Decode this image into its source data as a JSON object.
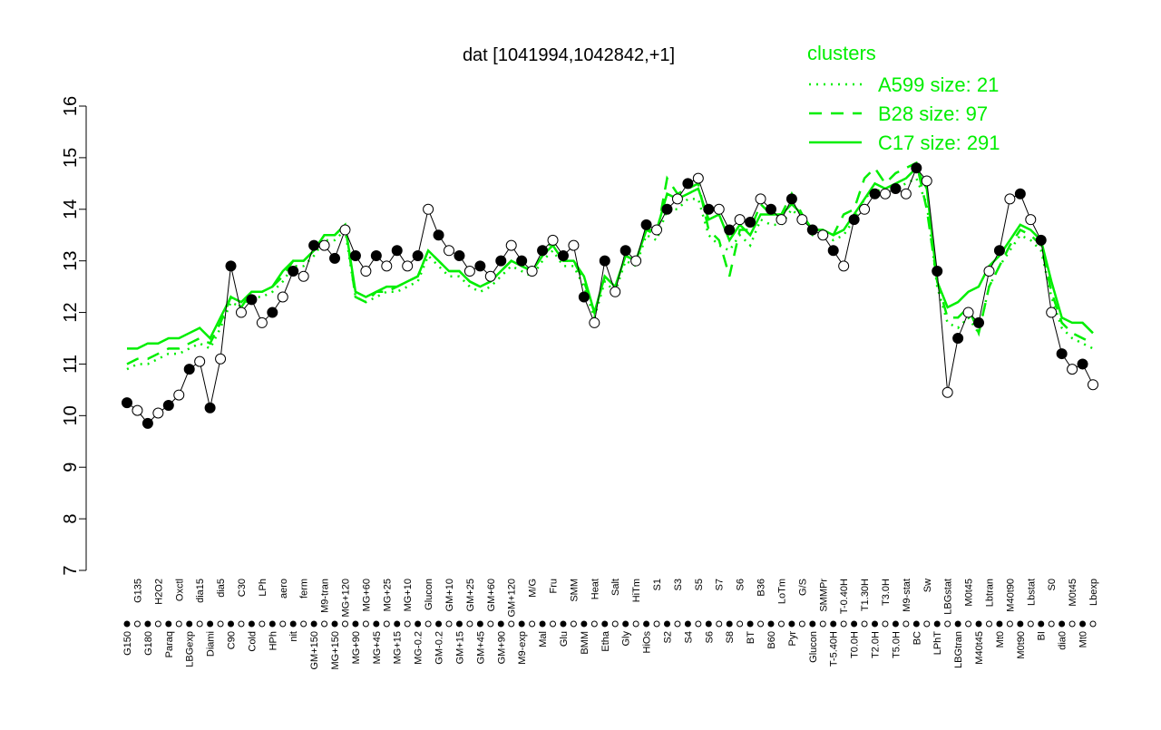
{
  "chart_data": {
    "type": "line",
    "title": "dat [1041994,1042842,+1]",
    "categories": [
      "G150",
      "G135",
      "G180",
      "H2O2",
      "Paraq",
      "Oxctl",
      "LBGexp",
      "dia15",
      "Diami",
      "dia5",
      "C90",
      "C30",
      "Cold",
      "LPh",
      "HPh",
      "aero",
      "nit",
      "ferm",
      "GM+150",
      "M9-tran",
      "MG+150",
      "MG+120",
      "MG+90",
      "MG+60",
      "MG+45",
      "MG+25",
      "MG+15",
      "MG+10",
      "MG-0.2",
      "Glucon",
      "GM-0.2",
      "GM+10",
      "GM+15",
      "GM+25",
      "GM+45",
      "GM+60",
      "GM+90",
      "GM+120",
      "M9-exp",
      "M/G",
      "Mal",
      "Fru",
      "Glu",
      "SMM",
      "BMM",
      "Heat",
      "Etha",
      "Salt",
      "Gly",
      "HiTm",
      "HiOs",
      "S1",
      "S2",
      "S3",
      "S4",
      "S5",
      "S6",
      "S7",
      "S8",
      "S6",
      "BT",
      "B36",
      "B60",
      "LoTm",
      "Pyr",
      "G/S",
      "Glucon",
      "SMMPr",
      "T-5.40H",
      "T-0.40H",
      "T0.0H",
      "T1.30H",
      "T2.0H",
      "T3.0H",
      "T5.0H",
      "M9-stat",
      "BC",
      "Sw",
      "LPhT",
      "LBGstat",
      "LBGtran",
      "M0t45",
      "M40t45",
      "Lbtran",
      "Mt0",
      "M40t90",
      "M0t90",
      "Lbstat",
      "BI",
      "S0",
      "dia0",
      "M0t45",
      "Mt0",
      "Lbexp"
    ],
    "values": [
      10.25,
      10.1,
      9.85,
      10.05,
      10.2,
      10.4,
      10.9,
      11.05,
      10.15,
      11.1,
      12.9,
      12.0,
      12.25,
      11.8,
      12.0,
      12.3,
      12.8,
      12.7,
      13.3,
      13.3,
      13.05,
      13.6,
      13.1,
      12.8,
      13.1,
      12.9,
      13.2,
      12.9,
      13.1,
      14.0,
      13.5,
      13.2,
      13.1,
      12.8,
      12.9,
      12.7,
      13.0,
      13.3,
      13.0,
      12.8,
      13.2,
      13.4,
      13.1,
      13.3,
      12.3,
      11.8,
      13.0,
      12.4,
      13.2,
      13.0,
      13.7,
      13.6,
      14.0,
      14.2,
      14.5,
      14.6,
      14.0,
      14.0,
      13.6,
      13.8,
      13.75,
      14.2,
      14.0,
      13.8,
      14.2,
      13.8,
      13.6,
      13.5,
      13.2,
      12.9,
      13.8,
      14.0,
      14.3,
      14.3,
      14.4,
      14.3,
      14.8,
      14.55,
      12.8,
      10.45,
      11.5,
      12.0,
      11.8,
      12.8,
      13.2,
      14.2,
      14.3,
      13.8,
      13.4,
      12.0,
      11.2,
      10.9,
      11.0,
      10.6
    ],
    "color": "#000000",
    "series": [
      {
        "name": "A599 size: 21",
        "color": "#00ee00",
        "dash": "dotted",
        "values": [
          10.9,
          11.0,
          11.0,
          11.1,
          11.2,
          11.2,
          11.3,
          11.4,
          11.3,
          11.7,
          12.2,
          12.1,
          12.3,
          12.3,
          12.4,
          12.6,
          12.9,
          12.9,
          13.1,
          13.4,
          13.4,
          13.6,
          12.3,
          12.2,
          12.3,
          12.4,
          12.4,
          12.5,
          12.6,
          13.1,
          12.9,
          12.7,
          12.7,
          12.5,
          12.4,
          12.5,
          12.7,
          12.9,
          12.8,
          12.7,
          13.0,
          13.2,
          12.9,
          12.9,
          12.5,
          11.9,
          12.6,
          12.4,
          13.0,
          12.9,
          13.5,
          13.4,
          14.0,
          14.0,
          14.2,
          14.2,
          13.5,
          13.3,
          13.2,
          13.5,
          13.3,
          13.8,
          13.7,
          13.7,
          14.0,
          13.8,
          13.5,
          13.5,
          13.4,
          13.5,
          13.8,
          14.2,
          14.4,
          14.3,
          14.4,
          14.5,
          14.6,
          14.1,
          12.5,
          11.8,
          11.7,
          11.9,
          11.6,
          12.5,
          12.9,
          13.2,
          13.5,
          13.4,
          13.2,
          12.3,
          11.7,
          11.5,
          11.4,
          11.3
        ]
      },
      {
        "name": "B28 size: 97",
        "color": "#00ee00",
        "dash": "dashed",
        "values": [
          11.0,
          11.1,
          11.1,
          11.2,
          11.3,
          11.3,
          11.4,
          11.5,
          11.4,
          11.8,
          12.3,
          12.1,
          12.4,
          12.4,
          12.5,
          12.7,
          13.0,
          13.0,
          13.2,
          13.5,
          13.5,
          13.7,
          12.3,
          12.2,
          12.4,
          12.4,
          12.5,
          12.6,
          12.7,
          13.2,
          13.0,
          12.8,
          12.8,
          12.6,
          12.5,
          12.6,
          12.8,
          13.0,
          12.9,
          12.8,
          13.1,
          13.4,
          13.0,
          13.0,
          12.6,
          12.0,
          12.7,
          12.5,
          13.1,
          13.0,
          13.6,
          13.5,
          14.6,
          14.3,
          14.4,
          14.5,
          13.6,
          13.4,
          12.7,
          13.6,
          13.6,
          14.1,
          13.9,
          13.9,
          14.3,
          13.9,
          13.6,
          13.6,
          13.5,
          13.9,
          14.0,
          14.6,
          14.8,
          14.5,
          14.7,
          14.8,
          14.9,
          14.0,
          12.6,
          11.9,
          11.9,
          12.1,
          11.6,
          12.5,
          12.9,
          13.3,
          13.6,
          13.5,
          13.3,
          12.4,
          11.8,
          11.6,
          11.5,
          11.4
        ]
      },
      {
        "name": "C17 size: 291",
        "color": "#00ee00",
        "dash": "solid",
        "values": [
          11.3,
          11.3,
          11.4,
          11.4,
          11.5,
          11.5,
          11.6,
          11.7,
          11.5,
          11.9,
          12.3,
          12.2,
          12.4,
          12.4,
          12.5,
          12.8,
          13.0,
          13.0,
          13.2,
          13.5,
          13.5,
          13.7,
          12.4,
          12.3,
          12.4,
          12.5,
          12.5,
          12.6,
          12.7,
          13.2,
          13.0,
          12.8,
          12.8,
          12.6,
          12.5,
          12.6,
          12.8,
          13.0,
          12.9,
          12.8,
          13.1,
          13.3,
          13.0,
          13.0,
          12.7,
          12.0,
          12.7,
          12.5,
          13.1,
          13.0,
          13.6,
          13.6,
          14.3,
          14.2,
          14.3,
          14.4,
          13.8,
          13.9,
          13.4,
          13.7,
          13.5,
          13.9,
          13.9,
          13.9,
          14.1,
          13.9,
          13.6,
          13.6,
          13.5,
          13.6,
          13.9,
          14.2,
          14.5,
          14.4,
          14.5,
          14.6,
          14.8,
          14.4,
          12.6,
          12.1,
          12.2,
          12.4,
          12.5,
          12.9,
          13.1,
          13.4,
          13.7,
          13.6,
          13.4,
          12.6,
          11.9,
          11.8,
          11.8,
          11.6
        ]
      }
    ],
    "legend_title": "clusters",
    "ylim": [
      7,
      16
    ],
    "yticks": [
      7,
      8,
      9,
      10,
      11,
      12,
      13,
      14,
      15,
      16
    ]
  }
}
